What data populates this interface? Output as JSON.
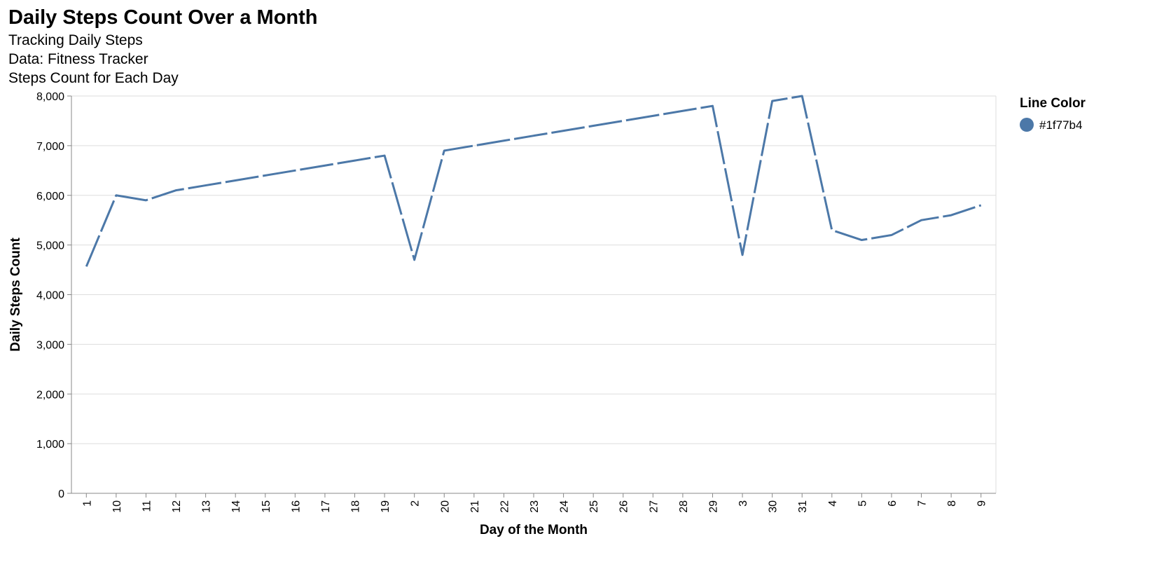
{
  "chart_data": {
    "type": "line",
    "title": "Daily Steps Count Over a Month",
    "subtitle": [
      "Tracking Daily Steps",
      "Data: Fitness Tracker",
      "Steps Count for Each Day"
    ],
    "xlabel": "Day of the Month",
    "ylabel": "Daily Steps Count",
    "ylim": [
      0,
      8000
    ],
    "yticks": [
      0,
      1000,
      2000,
      3000,
      4000,
      5000,
      6000,
      7000,
      8000
    ],
    "ytick_labels": [
      "0",
      "1,000",
      "2,000",
      "3,000",
      "4,000",
      "5,000",
      "6,000",
      "7,000",
      "8,000"
    ],
    "grid": true,
    "categories": [
      "1",
      "10",
      "11",
      "12",
      "13",
      "14",
      "15",
      "16",
      "17",
      "18",
      "19",
      "2",
      "20",
      "21",
      "22",
      "23",
      "24",
      "25",
      "26",
      "27",
      "28",
      "29",
      "3",
      "30",
      "31",
      "4",
      "5",
      "6",
      "7",
      "8",
      "9"
    ],
    "series": [
      {
        "values": [
          4567,
          6000,
          5900,
          6100,
          6200,
          6300,
          6400,
          6500,
          6600,
          6700,
          6800,
          4700,
          6900,
          7000,
          7100,
          7200,
          7300,
          7400,
          7500,
          7600,
          7700,
          7800,
          4800,
          7900,
          8000,
          5300,
          5100,
          5200,
          5500,
          5600,
          5800
        ],
        "color": "#1f77b4",
        "stroke_color": "#4c78a8",
        "dashed": true
      }
    ],
    "legend": {
      "title": "Line Color",
      "placement": "top-right",
      "entries": [
        {
          "label": "#1f77b4",
          "color": "#4c78a8"
        }
      ]
    }
  }
}
